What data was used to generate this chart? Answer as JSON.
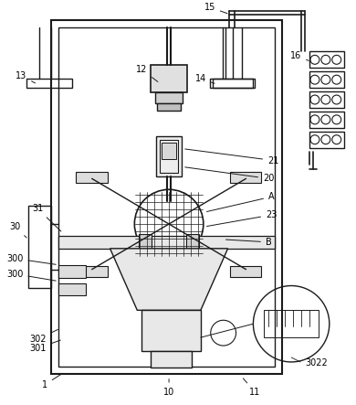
{
  "bg_color": "#ffffff",
  "line_color": "#1a1a1a",
  "fig_width": 3.9,
  "fig_height": 4.43,
  "dpi": 100
}
